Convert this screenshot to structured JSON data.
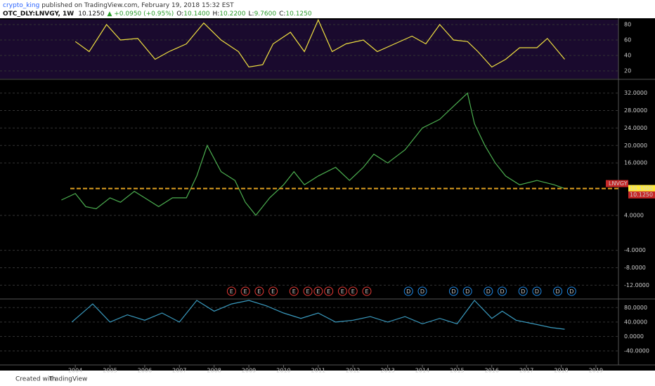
{
  "header": {
    "author": "crypto_king",
    "published": " published on TradingView.com, February 19, 2018 15:32 EST",
    "symbol": "OTC_DLY:LNVGY, 1W",
    "price": "10.1250",
    "change": "▲ +0.0950 (+0.95%)",
    "ohlc": [
      [
        "O:",
        "10.1400"
      ],
      [
        "H:",
        "10.2200"
      ],
      [
        "L:",
        "9.7600"
      ],
      [
        "C:",
        "10.1250"
      ]
    ]
  },
  "xaxis": {
    "xlim": [
      2001.83,
      2019.65
    ],
    "xticks": [
      2004,
      2005,
      2006,
      2007,
      2008,
      2009,
      2010,
      2011,
      2012,
      2013,
      2014,
      2015,
      2016,
      2017,
      2018,
      2019
    ]
  },
  "rsi": {
    "color": "#f0e040",
    "ylim": [
      10,
      86.4
    ],
    "yticks": [
      20,
      40,
      60,
      80
    ],
    "x": [
      2004.0,
      2004.4,
      2004.9,
      2005.3,
      2005.8,
      2006.3,
      2006.7,
      2007.2,
      2007.7,
      2008.2,
      2008.7,
      2009.0,
      2009.4,
      2009.7,
      2010.2,
      2010.6,
      2011.0,
      2011.4,
      2011.8,
      2012.3,
      2012.7,
      2013.2,
      2013.7,
      2014.1,
      2014.5,
      2014.9,
      2015.3,
      2015.6,
      2016.0,
      2016.4,
      2016.8,
      2017.3,
      2017.6,
      2018.1
    ],
    "values": [
      58,
      45,
      80,
      60,
      62,
      35,
      45,
      55,
      82,
      60,
      45,
      25,
      28,
      55,
      70,
      45,
      86,
      45,
      55,
      60,
      45,
      55,
      65,
      55,
      80,
      60,
      58,
      45,
      25,
      35,
      50,
      50,
      62,
      35
    ]
  },
  "price": {
    "color": "#4caf50",
    "ylim": [
      -15,
      35
    ],
    "yticks": [
      {
        "value": 32,
        "label": "32.0000"
      },
      {
        "value": 28,
        "label": "28.0000"
      },
      {
        "value": 24,
        "label": "24.0000"
      },
      {
        "value": 20,
        "label": "20.0000"
      },
      {
        "value": 16,
        "label": "16.0000"
      },
      {
        "value": 4,
        "label": "4.0000"
      },
      {
        "value": -4,
        "label": "-4.0000"
      },
      {
        "value": -8,
        "label": "-8.0000"
      },
      {
        "value": -12,
        "label": "-12.0000"
      }
    ],
    "x": [
      2003.6,
      2004.0,
      2004.3,
      2004.6,
      2005.0,
      2005.3,
      2005.7,
      2006.0,
      2006.4,
      2006.8,
      2007.2,
      2007.5,
      2007.8,
      2008.2,
      2008.6,
      2008.9,
      2009.2,
      2009.6,
      2010.0,
      2010.3,
      2010.6,
      2011.0,
      2011.5,
      2011.9,
      2012.3,
      2012.6,
      2013.0,
      2013.5,
      2014.0,
      2014.5,
      2014.9,
      2015.3,
      2015.5,
      2015.8,
      2016.1,
      2016.4,
      2016.8,
      2017.3,
      2017.8,
      2018.1
    ],
    "values": [
      7.5,
      9,
      6,
      5.5,
      8,
      7,
      9.5,
      8,
      6,
      8,
      8,
      13,
      20,
      14,
      12,
      7,
      4,
      8,
      11,
      14,
      11,
      13,
      15,
      12,
      15,
      18,
      16,
      19,
      24,
      26,
      29,
      32,
      25,
      20,
      16,
      13,
      11,
      12,
      11,
      10.125
    ],
    "tag": "LNVGY",
    "level": {
      "value": 10.15,
      "label": "10.1500"
    },
    "last": {
      "value": 10.125,
      "label": "10.1250"
    }
  },
  "events": {
    "earnings": {
      "label": "E",
      "x": [
        2008.5,
        2008.9,
        2009.3,
        2009.7,
        2010.3,
        2010.7,
        2011.0,
        2011.3,
        2011.7,
        2012.0,
        2012.4
      ]
    },
    "dividends": {
      "label": "D",
      "x": [
        2013.6,
        2014.0,
        2014.9,
        2015.3,
        2015.9,
        2016.3,
        2016.9,
        2017.3,
        2017.9,
        2018.3
      ]
    }
  },
  "osc": {
    "color": "#3a9bc0",
    "ylim": [
      -75,
      100
    ],
    "yticks": [
      {
        "value": 80,
        "label": "80.0000"
      },
      {
        "value": 40,
        "label": "40.0000"
      },
      {
        "value": 0,
        "label": "0.0000"
      },
      {
        "value": -40,
        "label": "-40.0000"
      }
    ],
    "x": [
      2003.9,
      2004.5,
      2005.0,
      2005.5,
      2006.0,
      2006.5,
      2007.0,
      2007.5,
      2008.0,
      2008.5,
      2009.0,
      2009.5,
      2010.0,
      2010.5,
      2011.0,
      2011.5,
      2012.0,
      2012.5,
      2013.0,
      2013.5,
      2014.0,
      2014.5,
      2015.0,
      2015.5,
      2016.0,
      2016.3,
      2016.7,
      2017.2,
      2017.7,
      2018.1
    ],
    "values": [
      40,
      90,
      40,
      60,
      45,
      65,
      40,
      100,
      70,
      90,
      100,
      85,
      65,
      50,
      65,
      40,
      45,
      55,
      40,
      55,
      35,
      50,
      35,
      100,
      50,
      70,
      45,
      35,
      25,
      20
    ]
  },
  "footer": {
    "created": "Created with",
    "brand": "TradingView"
  }
}
